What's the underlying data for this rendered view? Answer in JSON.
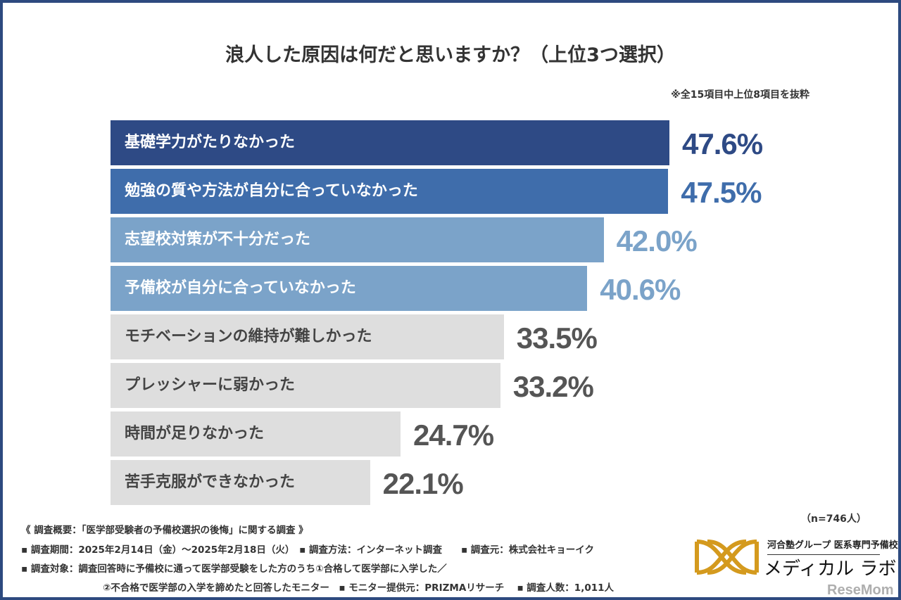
{
  "chart_data": {
    "type": "bar",
    "orientation": "horizontal",
    "title": "浪人した原因は何だと思いますか？（上位3つ選択）",
    "note": "※全15項目中上位8項目を抜粋",
    "categories": [
      "基礎学力がたりなかった",
      "勉強の質や方法が自分に合っていなかった",
      "志望校対策が不十分だった",
      "予備校が自分に合っていなかった",
      "モチベーションの維持が難しかった",
      "プレッシャーに弱かった",
      "時間が足りなかった",
      "苦手克服ができなかった"
    ],
    "values": [
      47.6,
      47.5,
      42.0,
      40.6,
      33.5,
      33.2,
      24.7,
      22.1
    ],
    "value_labels": [
      "47.6%",
      "47.5%",
      "42.0%",
      "40.6%",
      "33.5%",
      "33.2%",
      "24.7%",
      "22.1%"
    ],
    "unit": "%",
    "bar_colors": [
      "#2e4a85",
      "#3f6dab",
      "#7ba3c9",
      "#7ba3c9",
      "#dedede",
      "#dedede",
      "#dedede",
      "#dedede"
    ],
    "label_colors": [
      "#ffffff",
      "#ffffff",
      "#ffffff",
      "#ffffff",
      "#444444",
      "#444444",
      "#444444",
      "#444444"
    ],
    "value_colors": [
      "#2e4a85",
      "#3f6dab",
      "#7ba3c9",
      "#7ba3c9",
      "#555555",
      "#555555",
      "#555555",
      "#555555"
    ],
    "grid": false,
    "sample": "（n=746人）"
  },
  "footer": {
    "line1": "《 調査概要：「医学部受験者の予備校選択の後悔」に関する調査 》",
    "line2": "▪ 調査期間：2025年2月14日（金）～2025年2月18日（火）　▪ 調査方法：インターネット調査　　▪ 調査元：株式会社キョーイク",
    "line3": "▪ 調査対象：調査回答時に予備校に通って医学部受験をした方のうち①合格して医学部に入学した／",
    "line4": "②不合格で医学部の入学を諦めたと回答したモニター　▪ モニター提供元：PRIZMAリサーチ　 ▪ 調査人数：1,011人"
  },
  "logo": {
    "sub": "河合塾グループ 医系専門予備校",
    "main": "メディカル ラボ"
  },
  "watermark": "ReseMom"
}
